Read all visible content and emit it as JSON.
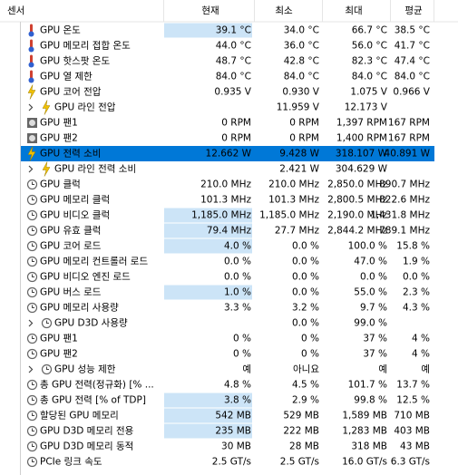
{
  "header": [
    "센서",
    "현재",
    "최소",
    "최대",
    "평균"
  ],
  "rows": [
    [
      "GPU 온도",
      "39.1 °C",
      "34.0 °C",
      "66.7 °C",
      "38.5 °C"
    ],
    [
      "GPU 메모리 접합 온도",
      "44.0 °C",
      "36.0 °C",
      "56.0 °C",
      "41.7 °C"
    ],
    [
      "GPU 핫스팟 온도",
      "48.7 °C",
      "42.8 °C",
      "82.3 °C",
      "47.4 °C"
    ],
    [
      "GPU 열 제한",
      "84.0 °C",
      "84.0 °C",
      "84.0 °C",
      "84.0 °C"
    ],
    [
      "GPU 코어 전압",
      "0.935 V",
      "0.930 V",
      "1.075 V",
      "0.966 V"
    ],
    [
      "GPU 라인 전압",
      null,
      "11.959 V",
      "12.173 V",
      null
    ],
    [
      "GPU 팬1",
      "0 RPM",
      "0 RPM",
      "1,397 RPM",
      "167 RPM"
    ],
    [
      "GPU 팬2",
      "0 RPM",
      "0 RPM",
      "1,400 RPM",
      "167 RPM"
    ],
    [
      "GPU 전력 소비",
      "12.662 W",
      "9.428 W",
      "318.107 W",
      "40.891 W"
    ],
    [
      "GPU 라인 전력 소비",
      null,
      "2.421 W",
      "304.629 W",
      null
    ],
    [
      "GPU 클럭",
      "210.0 MHz",
      "210.0 MHz",
      "2,850.0 MHz",
      "890.7 MHz"
    ],
    [
      "GPU 메모리 클럭",
      "101.3 MHz",
      "101.3 MHz",
      "2,800.5 MHz",
      "822.6 MHz"
    ],
    [
      "GPU 비디오 클럭",
      "1,185.0 MHz",
      "1,185.0 MHz",
      "2,190.0 MHz",
      "1,431.8 MHz"
    ],
    [
      "GPU 유효 클럭",
      "79.4 MHz",
      "27.7 MHz",
      "2,844.2 MHz",
      "789.1 MHz"
    ],
    [
      "GPU 코어 로드",
      "4.0 %",
      "0.0 %",
      "100.0 %",
      "15.8 %"
    ],
    [
      "GPU 메모리 컨트롤러 로드",
      "0.0 %",
      "0.0 %",
      "47.0 %",
      "1.9 %"
    ],
    [
      "GPU 비디오 엔진 로드",
      "0.0 %",
      "0.0 %",
      "0.0 %",
      "0.0 %"
    ],
    [
      "GPU 버스 로드",
      "1.0 %",
      "0.0 %",
      "55.0 %",
      "2.3 %"
    ],
    [
      "GPU 메모리 사용량",
      "3.3 %",
      "3.2 %",
      "9.7 %",
      "4.3 %"
    ],
    [
      "GPU D3D 사용량",
      null,
      "0.0 %",
      "99.0 %",
      null
    ],
    [
      "GPU 팬1",
      "0 %",
      "0 %",
      "37 %",
      "4 %"
    ],
    [
      "GPU 팬2",
      "0 %",
      "0 %",
      "37 %",
      "4 %"
    ],
    [
      "GPU 성능 제한",
      "예",
      "아니요",
      "예",
      "예"
    ],
    [
      "총 GPU 전력(정규화) [% ...",
      "4.8 %",
      "4.5 %",
      "101.7 %",
      "13.7 %"
    ],
    [
      "총 GPU 전력 [% of TDP]",
      "3.8 %",
      "2.9 %",
      "99.8 %",
      "12.5 %"
    ],
    [
      "할당된 GPU 메모리",
      "542 MB",
      "529 MB",
      "1,589 MB",
      "710 MB"
    ],
    [
      "GPU D3D 메모리 전용",
      "235 MB",
      "222 MB",
      "1,283 MB",
      "403 MB"
    ],
    [
      "GPU D3D 메모리 동적",
      "30 MB",
      "28 MB",
      "318 MB",
      "43 MB"
    ],
    [
      "PCIe 링크 속도",
      "2.5 GT/s",
      "2.5 GT/s",
      "16.0 GT/s",
      "6.3 GT/s"
    ]
  ]
}
